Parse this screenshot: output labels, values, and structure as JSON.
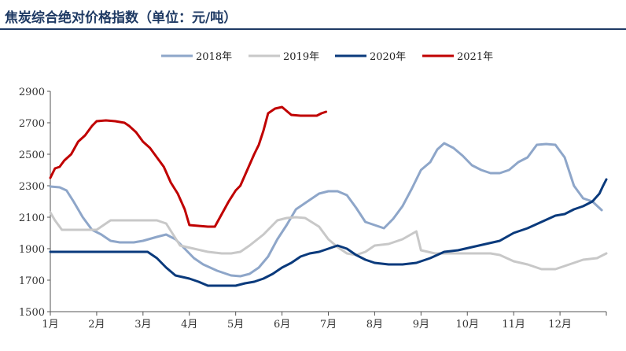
{
  "title": "焦炭综合绝对价格指数（单位：元/吨）",
  "chart_data": {
    "type": "line",
    "title": "焦炭综合绝对价格指数（单位：元/吨）",
    "ylim": [
      1500,
      2900
    ],
    "yticks": [
      1500,
      1700,
      1900,
      2100,
      2300,
      2500,
      2700,
      2900
    ],
    "xticks": [
      "1月",
      "2月",
      "3月",
      "4月",
      "5月",
      "6月",
      "7月",
      "8月",
      "9月",
      "10月",
      "11月",
      "12月"
    ],
    "xlim": [
      1,
      13
    ],
    "legend_position": "top",
    "grid": false,
    "series": [
      {
        "name": "2018年",
        "color": "#8ea6c9",
        "x": [
          1.0,
          1.2,
          1.35,
          1.5,
          1.7,
          1.9,
          2.1,
          2.3,
          2.5,
          2.8,
          3.0,
          3.3,
          3.5,
          3.7,
          3.9,
          4.1,
          4.3,
          4.6,
          4.9,
          5.1,
          5.3,
          5.5,
          5.7,
          5.9,
          6.1,
          6.3,
          6.5,
          6.8,
          7.0,
          7.2,
          7.4,
          7.6,
          7.8,
          8.0,
          8.2,
          8.4,
          8.6,
          8.8,
          9.0,
          9.2,
          9.35,
          9.5,
          9.7,
          9.9,
          10.1,
          10.3,
          10.5,
          10.7,
          10.9,
          11.1,
          11.3,
          11.5,
          11.7,
          11.9,
          12.1,
          12.3,
          12.5,
          12.7,
          12.9
        ],
        "values": [
          2295,
          2290,
          2270,
          2200,
          2100,
          2020,
          1990,
          1950,
          1940,
          1940,
          1950,
          1975,
          1990,
          1960,
          1900,
          1840,
          1800,
          1760,
          1730,
          1725,
          1740,
          1780,
          1850,
          1960,
          2050,
          2150,
          2190,
          2250,
          2265,
          2265,
          2240,
          2160,
          2070,
          2050,
          2030,
          2090,
          2170,
          2280,
          2400,
          2450,
          2530,
          2570,
          2540,
          2490,
          2430,
          2400,
          2380,
          2380,
          2400,
          2450,
          2480,
          2560,
          2565,
          2560,
          2480,
          2300,
          2220,
          2200,
          2145
        ]
      },
      {
        "name": "2019年",
        "color": "#c8c8c8",
        "x": [
          1.0,
          1.1,
          1.25,
          1.5,
          1.8,
          2.0,
          2.3,
          2.6,
          2.9,
          3.1,
          3.3,
          3.5,
          3.8,
          4.1,
          4.4,
          4.7,
          4.9,
          5.1,
          5.3,
          5.6,
          5.9,
          6.1,
          6.3,
          6.5,
          6.8,
          7.0,
          7.2,
          7.4,
          7.6,
          7.8,
          8.0,
          8.3,
          8.6,
          8.9,
          9.0,
          9.3,
          9.6,
          10.0,
          10.5,
          10.7,
          11.0,
          11.3,
          11.6,
          11.9,
          12.2,
          12.5,
          12.8,
          13.0
        ],
        "values": [
          2130,
          2080,
          2020,
          2020,
          2020,
          2020,
          2080,
          2080,
          2080,
          2080,
          2080,
          2060,
          1920,
          1900,
          1880,
          1870,
          1870,
          1880,
          1920,
          1990,
          2080,
          2095,
          2100,
          2095,
          2040,
          1960,
          1910,
          1870,
          1860,
          1880,
          1920,
          1930,
          1960,
          2010,
          1890,
          1870,
          1870,
          1870,
          1870,
          1860,
          1820,
          1800,
          1770,
          1770,
          1800,
          1830,
          1840,
          1870
        ]
      },
      {
        "name": "2020年",
        "color": "#0a3a7c",
        "x": [
          1.0,
          1.3,
          1.7,
          2.0,
          2.3,
          2.6,
          2.9,
          3.1,
          3.3,
          3.5,
          3.7,
          4.0,
          4.2,
          4.4,
          4.7,
          5.0,
          5.2,
          5.4,
          5.6,
          5.8,
          6.0,
          6.2,
          6.4,
          6.6,
          6.8,
          7.0,
          7.2,
          7.4,
          7.6,
          7.8,
          8.0,
          8.3,
          8.6,
          8.9,
          9.2,
          9.5,
          9.8,
          10.1,
          10.4,
          10.7,
          11.0,
          11.3,
          11.6,
          11.9,
          12.1,
          12.3,
          12.5,
          12.7,
          12.85,
          12.93,
          13.0
        ],
        "values": [
          1880,
          1880,
          1880,
          1880,
          1880,
          1880,
          1880,
          1880,
          1840,
          1780,
          1730,
          1710,
          1690,
          1665,
          1665,
          1665,
          1680,
          1690,
          1710,
          1740,
          1780,
          1810,
          1850,
          1870,
          1880,
          1900,
          1920,
          1900,
          1860,
          1830,
          1810,
          1800,
          1800,
          1810,
          1840,
          1880,
          1890,
          1910,
          1930,
          1950,
          2000,
          2030,
          2070,
          2110,
          2120,
          2150,
          2170,
          2200,
          2250,
          2300,
          2340
        ]
      },
      {
        "name": "2021年",
        "color": "#c00000",
        "x": [
          1.0,
          1.1,
          1.2,
          1.3,
          1.45,
          1.6,
          1.75,
          1.9,
          2.0,
          2.2,
          2.4,
          2.6,
          2.7,
          2.85,
          3.0,
          3.15,
          3.3,
          3.45,
          3.6,
          3.75,
          3.9,
          4.0,
          4.2,
          4.4,
          4.55,
          4.7,
          4.85,
          5.0,
          5.1,
          5.25,
          5.4,
          5.5,
          5.6,
          5.7,
          5.85,
          6.0,
          6.2,
          6.4,
          6.6,
          6.75,
          6.85,
          6.95
        ],
        "values": [
          2350,
          2410,
          2420,
          2460,
          2500,
          2580,
          2620,
          2680,
          2710,
          2715,
          2710,
          2700,
          2680,
          2640,
          2580,
          2540,
          2480,
          2420,
          2320,
          2250,
          2150,
          2050,
          2045,
          2040,
          2040,
          2120,
          2200,
          2270,
          2300,
          2400,
          2500,
          2560,
          2650,
          2760,
          2790,
          2800,
          2750,
          2745,
          2745,
          2745,
          2760,
          2770
        ]
      }
    ]
  }
}
